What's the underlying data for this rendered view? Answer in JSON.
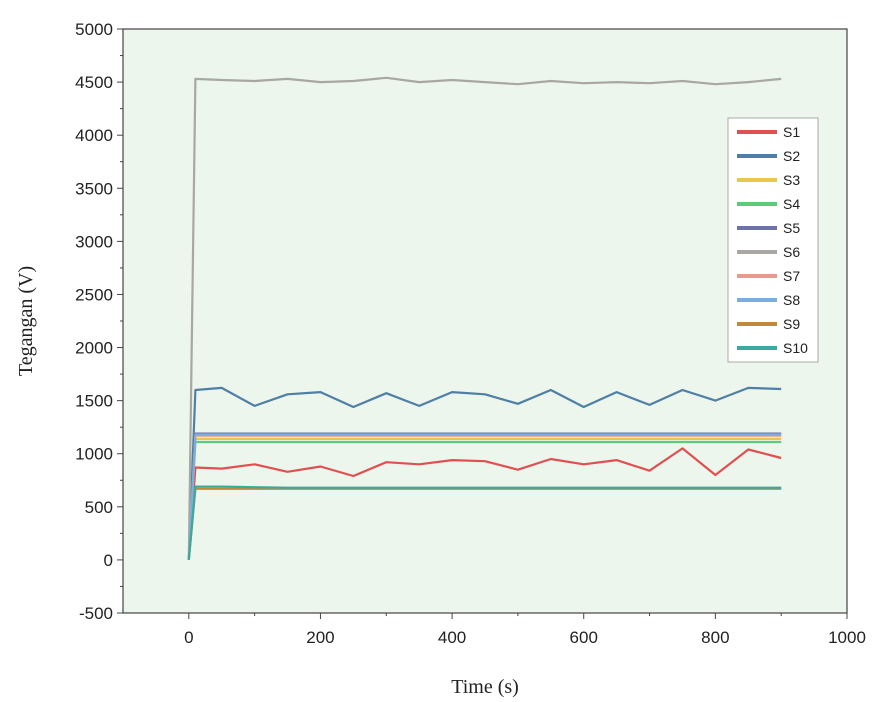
{
  "chart_data": {
    "type": "line",
    "xlabel": "Time (s)",
    "ylabel": "Tegangan (V)",
    "xlim": [
      -100,
      1000
    ],
    "ylim": [
      -500,
      5000
    ],
    "x_ticks": [
      0,
      200,
      400,
      600,
      800,
      1000
    ],
    "y_ticks": [
      -500,
      0,
      500,
      1000,
      1500,
      2000,
      2500,
      3000,
      3500,
      4000,
      4500,
      5000
    ],
    "x_tick_labels": [
      "0",
      "200",
      "400",
      "600",
      "800",
      "1000"
    ],
    "y_tick_labels": [
      "-500",
      "0",
      "500",
      "1000",
      "1500",
      "2000",
      "2500",
      "3000",
      "3500",
      "4000",
      "4500",
      "5000"
    ],
    "legend_position": "top-right",
    "grid": false,
    "x": [
      0,
      10,
      50,
      100,
      150,
      200,
      250,
      300,
      350,
      400,
      450,
      500,
      550,
      600,
      650,
      700,
      750,
      800,
      850,
      900
    ],
    "series": [
      {
        "name": "S1",
        "color": "#e05050",
        "values": [
          0,
          870,
          860,
          900,
          830,
          880,
          790,
          920,
          900,
          940,
          930,
          850,
          950,
          900,
          940,
          840,
          1050,
          800,
          1040,
          960
        ]
      },
      {
        "name": "S2",
        "color": "#4f7fa6",
        "values": [
          0,
          1600,
          1620,
          1450,
          1560,
          1580,
          1440,
          1570,
          1450,
          1580,
          1560,
          1470,
          1600,
          1440,
          1580,
          1460,
          1600,
          1500,
          1620,
          1610
        ]
      },
      {
        "name": "S3",
        "color": "#e8c84a",
        "values": [
          0,
          1140,
          1140,
          1140,
          1140,
          1140,
          1140,
          1140,
          1140,
          1140,
          1140,
          1140,
          1140,
          1140,
          1140,
          1140,
          1140,
          1140,
          1140,
          1140
        ]
      },
      {
        "name": "S4",
        "color": "#5ccc7a",
        "values": [
          0,
          1110,
          1110,
          1110,
          1110,
          1110,
          1110,
          1110,
          1110,
          1110,
          1110,
          1110,
          1110,
          1110,
          1110,
          1110,
          1110,
          1110,
          1110,
          1110
        ]
      },
      {
        "name": "S5",
        "color": "#6d73a8",
        "values": [
          0,
          1190,
          1190,
          1190,
          1190,
          1190,
          1190,
          1190,
          1190,
          1190,
          1190,
          1190,
          1190,
          1190,
          1190,
          1190,
          1190,
          1190,
          1190,
          1190
        ]
      },
      {
        "name": "S6",
        "color": "#a8a8a0",
        "values": [
          0,
          4530,
          4520,
          4510,
          4530,
          4500,
          4510,
          4540,
          4500,
          4520,
          4500,
          4480,
          4510,
          4490,
          4500,
          4490,
          4510,
          4480,
          4500,
          4530
        ]
      },
      {
        "name": "S7",
        "color": "#e89a8c",
        "values": [
          0,
          1170,
          1170,
          1170,
          1170,
          1170,
          1170,
          1170,
          1170,
          1170,
          1170,
          1170,
          1170,
          1170,
          1170,
          1170,
          1170,
          1170,
          1170,
          1170
        ]
      },
      {
        "name": "S8",
        "color": "#7aaee0",
        "values": [
          0,
          1180,
          1180,
          1180,
          1180,
          1180,
          1180,
          1180,
          1180,
          1180,
          1180,
          1180,
          1180,
          1180,
          1180,
          1180,
          1180,
          1180,
          1180,
          1180
        ]
      },
      {
        "name": "S9",
        "color": "#c08a3a",
        "values": [
          0,
          670,
          670,
          670,
          670,
          670,
          670,
          670,
          670,
          670,
          670,
          670,
          670,
          670,
          670,
          670,
          670,
          670,
          670,
          670
        ]
      },
      {
        "name": "S10",
        "color": "#3aa9a0",
        "values": [
          0,
          690,
          690,
          685,
          680,
          680,
          680,
          680,
          680,
          680,
          680,
          680,
          680,
          680,
          680,
          680,
          680,
          680,
          680,
          680
        ]
      }
    ]
  }
}
